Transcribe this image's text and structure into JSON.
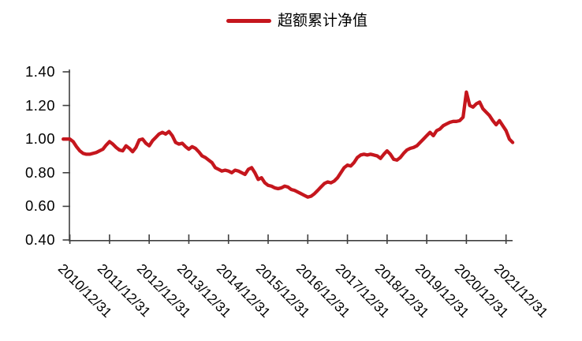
{
  "chart_data": {
    "type": "line",
    "title": "",
    "xlabel": "",
    "ylabel": "",
    "background": "#FFFFFF",
    "grid": false,
    "axis_color": "#404040",
    "tick_label_color": "#000000",
    "ylim": [
      0.4,
      1.4
    ],
    "y_tick_values": [
      1.4,
      1.2,
      1.0,
      0.8,
      0.6,
      0.4
    ],
    "y_tick_labels": [
      "1.40",
      "1.20",
      "1.00",
      "0.80",
      "0.60",
      "0.40"
    ],
    "x_tick_labels": [
      "2010/12/31",
      "2011/12/31",
      "2012/12/31",
      "2013/12/31",
      "2014/12/31",
      "2015/12/31",
      "2016/12/31",
      "2017/12/31",
      "2018/12/31",
      "2019/12/31",
      "2020/12/31",
      "2021/12/31"
    ],
    "legend": {
      "position": "top-center",
      "items": [
        {
          "label": "超额累计净值",
          "color": "#C5161D",
          "marker": "line"
        }
      ]
    },
    "series": [
      {
        "name": "超额累计净值",
        "color": "#C5161D",
        "line_width": 4.3,
        "frequency": "monthly",
        "start": "2010/10/31",
        "end": "2022/02/28",
        "values": [
          1.0,
          1.0,
          1.0,
          0.985,
          0.955,
          0.93,
          0.915,
          0.91,
          0.91,
          0.915,
          0.92,
          0.93,
          0.94,
          0.965,
          0.985,
          0.97,
          0.95,
          0.935,
          0.93,
          0.96,
          0.945,
          0.925,
          0.95,
          0.995,
          1.0,
          0.975,
          0.96,
          0.99,
          1.01,
          1.03,
          1.04,
          1.03,
          1.045,
          1.02,
          0.98,
          0.97,
          0.975,
          0.955,
          0.94,
          0.955,
          0.945,
          0.925,
          0.9,
          0.89,
          0.875,
          0.86,
          0.83,
          0.82,
          0.81,
          0.815,
          0.81,
          0.8,
          0.815,
          0.81,
          0.8,
          0.79,
          0.82,
          0.83,
          0.8,
          0.76,
          0.77,
          0.74,
          0.725,
          0.72,
          0.71,
          0.705,
          0.71,
          0.72,
          0.715,
          0.7,
          0.695,
          0.685,
          0.675,
          0.665,
          0.655,
          0.66,
          0.675,
          0.695,
          0.715,
          0.735,
          0.745,
          0.74,
          0.75,
          0.77,
          0.8,
          0.83,
          0.845,
          0.84,
          0.86,
          0.89,
          0.905,
          0.91,
          0.905,
          0.91,
          0.905,
          0.9,
          0.885,
          0.91,
          0.93,
          0.91,
          0.88,
          0.875,
          0.89,
          0.915,
          0.935,
          0.945,
          0.95,
          0.96,
          0.98,
          1.0,
          1.02,
          1.04,
          1.02,
          1.05,
          1.06,
          1.08,
          1.09,
          1.1,
          1.105,
          1.105,
          1.11,
          1.13,
          1.28,
          1.2,
          1.19,
          1.21,
          1.22,
          1.18,
          1.16,
          1.14,
          1.11,
          1.085,
          1.11,
          1.08,
          1.05,
          1.0,
          0.98
        ]
      }
    ]
  }
}
